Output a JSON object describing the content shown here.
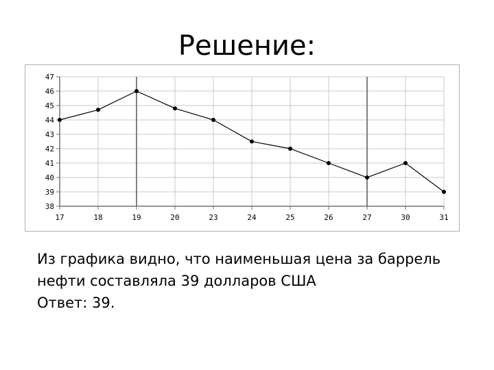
{
  "slide": {
    "title": "Решение:",
    "text_lines": [
      "Из графика видно, что наименьшая цена за баррель",
      "нефти составляла 39 долларов США",
      "Ответ: 39."
    ]
  },
  "colors": {
    "grid": "#c8c8c8",
    "major_grid": "#808080",
    "axis": "#707070",
    "line": "#000000"
  },
  "chart_data": {
    "type": "line",
    "title": "",
    "xlabel": "",
    "ylabel": "",
    "categories": [
      "17",
      "18",
      "19",
      "20",
      "23",
      "24",
      "25",
      "26",
      "27",
      "30",
      "31"
    ],
    "values": [
      44,
      44.7,
      46,
      44.8,
      44,
      42.5,
      42,
      41,
      40,
      41,
      39
    ],
    "ylim": [
      38,
      47
    ],
    "yticks": [
      38,
      39,
      40,
      41,
      42,
      43,
      44,
      45,
      46,
      47
    ],
    "major_x_gridlines": [
      "19",
      "27"
    ],
    "grid": true,
    "legend": "none"
  }
}
